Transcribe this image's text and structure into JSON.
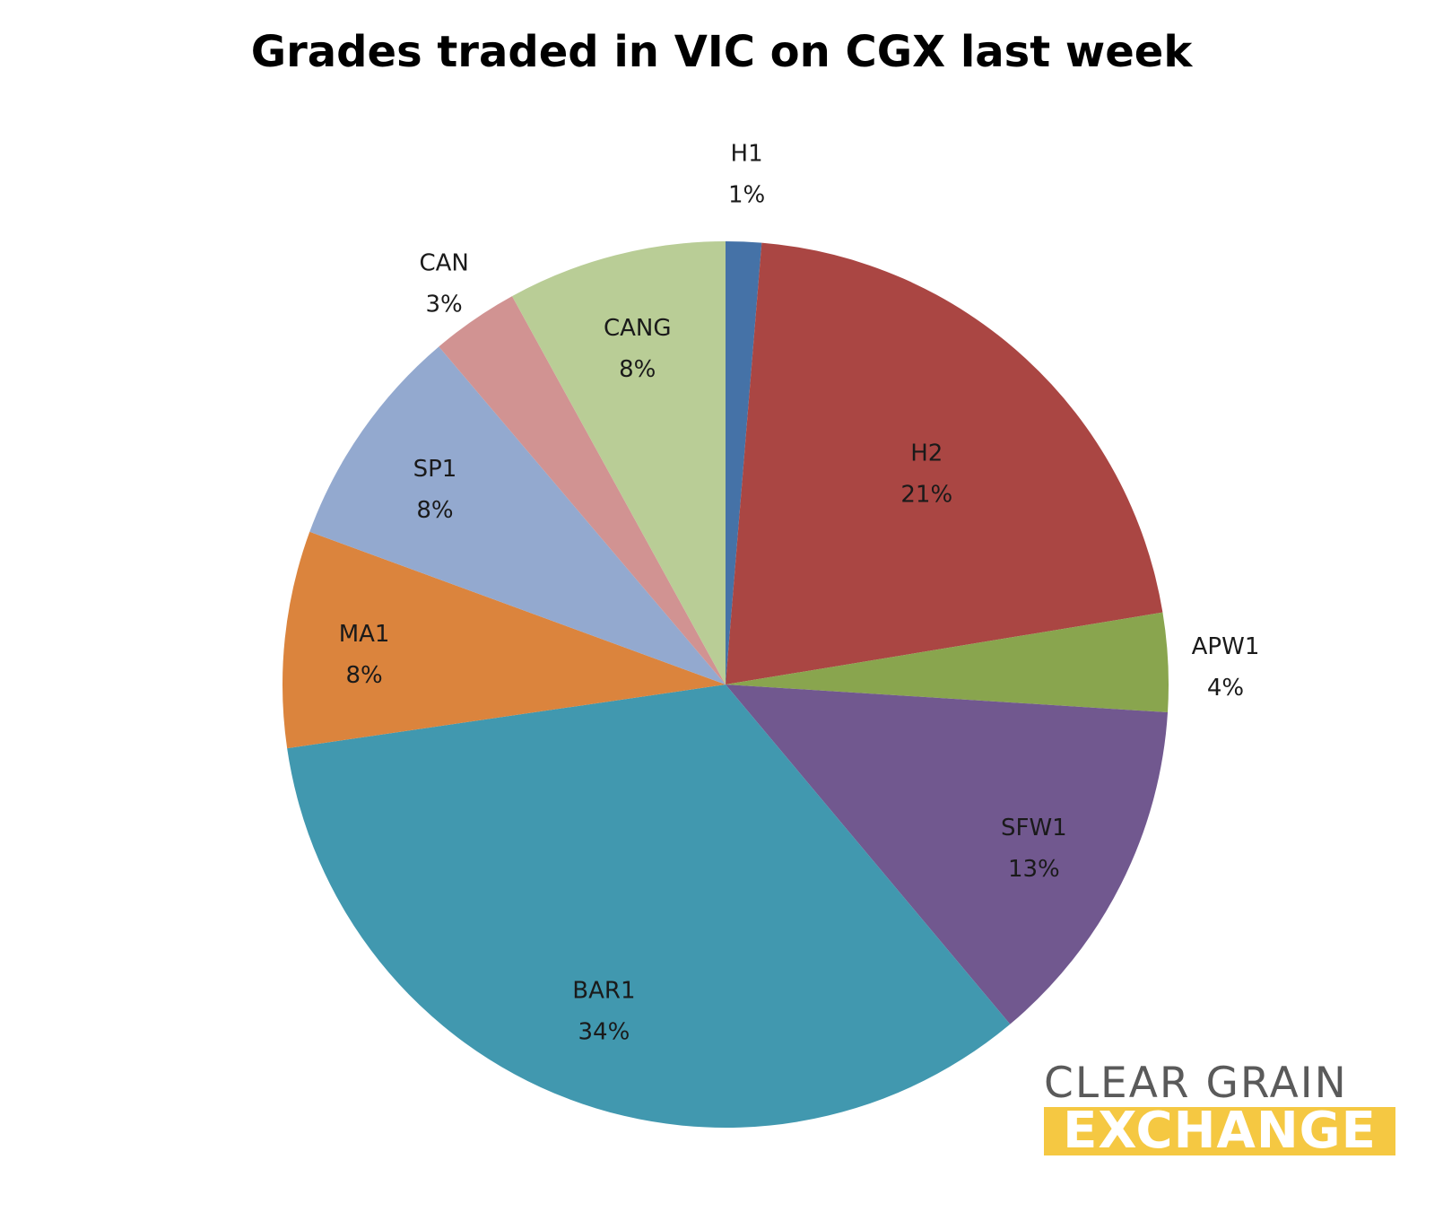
{
  "chart_data": {
    "type": "pie",
    "title": "Grades traded in VIC on CGX last week",
    "slices": [
      {
        "label": "H1",
        "percent_label": "1%",
        "value": 1.3,
        "color": "#4572a7"
      },
      {
        "label": "H2",
        "percent_label": "21%",
        "value": 21.1,
        "color": "#aa4643"
      },
      {
        "label": "APW1",
        "percent_label": "4%",
        "value": 3.6,
        "color": "#89a54e"
      },
      {
        "label": "SFW1",
        "percent_label": "13%",
        "value": 12.9,
        "color": "#71588f"
      },
      {
        "label": "BAR1",
        "percent_label": "34%",
        "value": 33.8,
        "color": "#4198af"
      },
      {
        "label": "MA1",
        "percent_label": "8%",
        "value": 7.9,
        "color": "#db843d"
      },
      {
        "label": "SP1",
        "percent_label": "8%",
        "value": 8.2,
        "color": "#93a9cf"
      },
      {
        "label": "CAN",
        "percent_label": "3%",
        "value": 3.2,
        "color": "#d19392"
      },
      {
        "label": "CANG",
        "percent_label": "8%",
        "value": 8.0,
        "color": "#b9cd96"
      }
    ],
    "start_angle": "12 o'clock",
    "direction": "clockwise",
    "legend": "none (labels on/near slices)"
  },
  "logo": {
    "line1": "CLEAR GRAIN",
    "line2": "EXCHANGE",
    "accent_color": "#f5c842",
    "text_color": "#5a5a5a"
  }
}
